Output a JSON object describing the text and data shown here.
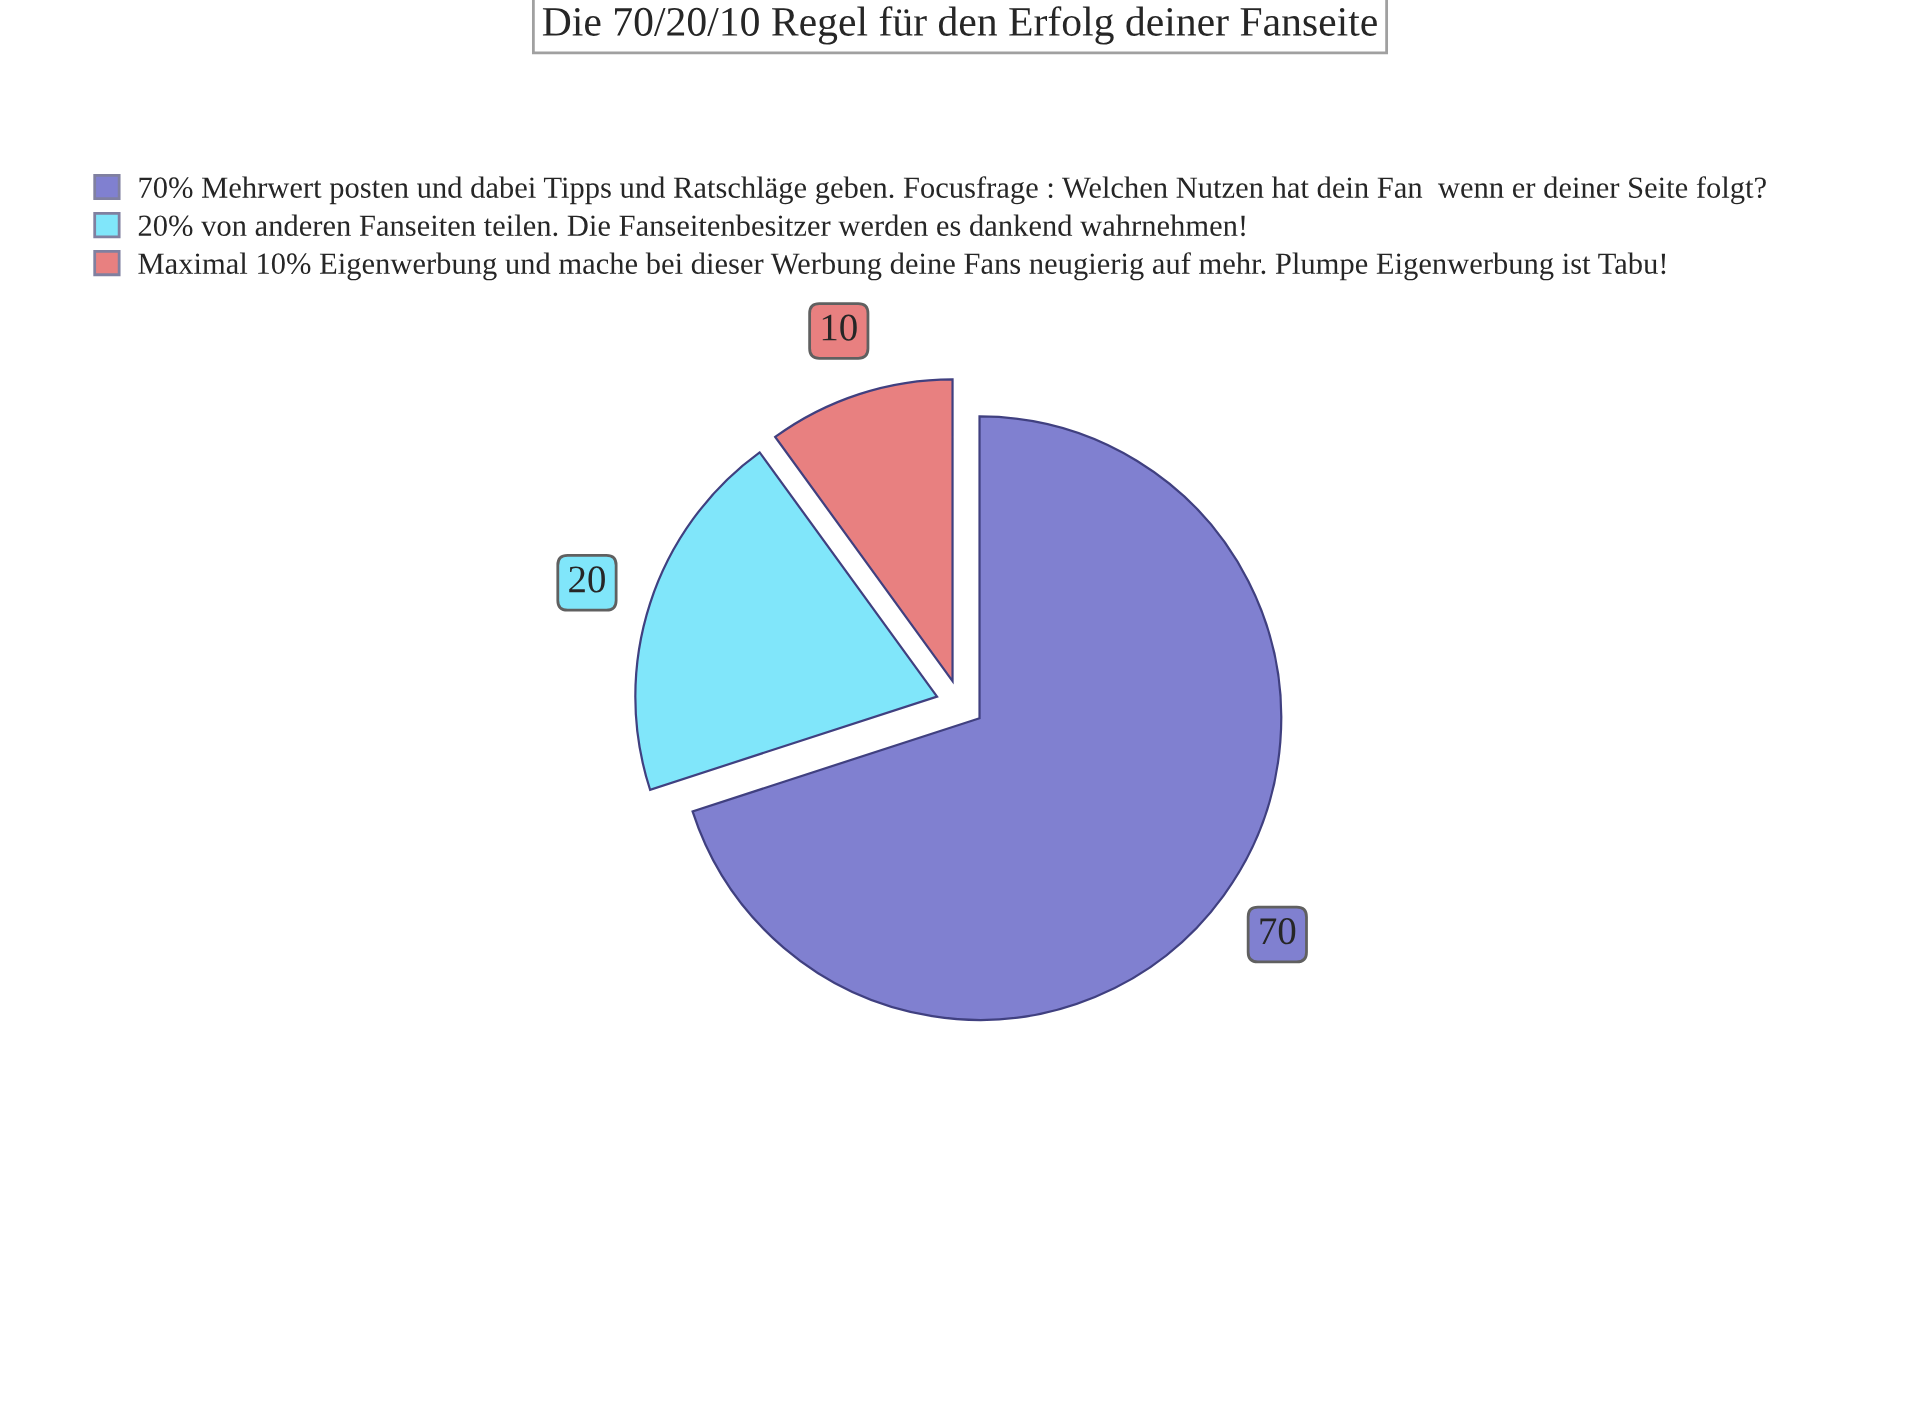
{
  "chart_data": {
    "type": "pie",
    "title": "Die 70/20/10 Regel für den Erfolg deiner Fanseite",
    "categories": [
      "70% Mehrwert posten und dabei Tipps und Ratschläge geben. Focusfrage : Welchen Nutzen hat dein Fan  wenn er deiner Seite folgt?",
      "20% von anderen Fanseiten teilen. Die Fanseitenbesitzer werden es dankend wahrnehmen!",
      "Maximal 10% Eigenwerbung und mache bei dieser Werbung deine Fans neugierig auf mehr. Plumpe Eigenwerbung ist Tabu!"
    ],
    "values": [
      70,
      20,
      10
    ],
    "colors": [
      "#8080d0",
      "#80e6fa",
      "#e88080"
    ],
    "data_labels": true,
    "legend": "top left"
  }
}
